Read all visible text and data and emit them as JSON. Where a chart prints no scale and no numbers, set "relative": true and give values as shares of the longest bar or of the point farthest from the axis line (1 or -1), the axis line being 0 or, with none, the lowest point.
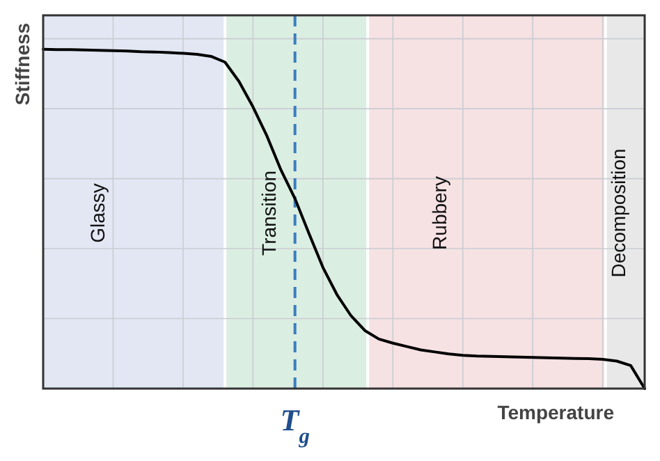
{
  "chart_data": {
    "type": "line",
    "relative": true,
    "xlabel": "Temperature",
    "ylabel": "Stiffness",
    "categories": [
      null,
      null,
      null,
      null,
      null,
      null,
      null,
      null,
      null,
      null,
      null,
      null,
      null,
      null,
      null,
      null,
      null,
      null,
      null,
      null,
      null,
      null,
      null,
      null,
      null,
      null,
      null,
      null,
      null,
      null,
      null,
      null,
      null,
      null,
      null,
      null,
      null,
      null,
      null,
      null,
      null,
      null,
      null,
      null
    ],
    "series": [
      {
        "color": "#000000",
        "values": [
          1,
          0.999,
          0.999,
          0.998,
          0.997,
          0.996,
          0.995,
          0.993,
          0.992,
          0.99,
          0.988,
          0.985,
          0.979,
          0.962,
          0.905,
          0.83,
          0.744,
          0.644,
          0.56,
          0.457,
          0.357,
          0.277,
          0.215,
          0.171,
          0.146,
          0.134,
          0.124,
          0.114,
          0.108,
          0.102,
          0.098,
          0.096,
          0.095,
          0.094,
          0.093,
          0.092,
          0.091,
          0.09,
          0.089,
          0.088,
          0.086,
          0.081,
          0.068,
          0
        ]
      }
    ],
    "grid": true,
    "marker": "none",
    "line_style": "solid",
    "annotations": [
      "Glassy",
      "Transition",
      "Rubbery",
      "Decomposition",
      "T$_{g}$"
    ]
  }
}
